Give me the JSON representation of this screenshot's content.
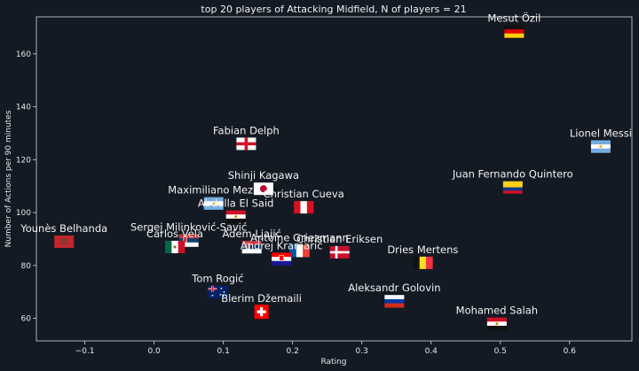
{
  "chart_data": {
    "type": "scatter",
    "title": "top 20 players of Attacking Midfield, N of players = 21",
    "xlabel": "Rating",
    "ylabel": "Number of Actions per 90 minutes",
    "xlim": [
      -0.17,
      0.69
    ],
    "ylim": [
      51.5,
      174
    ],
    "xticks": [
      -0.1,
      0.0,
      0.1,
      0.2,
      0.3,
      0.4,
      0.5,
      0.6
    ],
    "xtick_labels": [
      "−0.1",
      "0.0",
      "0.1",
      "0.2",
      "0.3",
      "0.4",
      "0.5",
      "0.6"
    ],
    "yticks": [
      60,
      80,
      100,
      120,
      140,
      160
    ],
    "ytick_labels": [
      "60",
      "80",
      "100",
      "120",
      "140",
      "160"
    ],
    "grid": false,
    "colors": {
      "background": "#131a24",
      "axis": "#d9d9d9",
      "text": "#f2f2f2"
    },
    "points": [
      {
        "name": "Mesut Özil",
        "x": 0.52,
        "y": 168.5,
        "flag": "germany"
      },
      {
        "name": "Lionel Messi",
        "x": 0.645,
        "y": 125,
        "flag": "argentina"
      },
      {
        "name": "Fabian Delph",
        "x": 0.133,
        "y": 126,
        "flag": "england"
      },
      {
        "name": "Juan Fernando Quintero",
        "x": 0.518,
        "y": 109.5,
        "flag": "colombia"
      },
      {
        "name": "Shinji Kagawa",
        "x": 0.158,
        "y": 109,
        "flag": "japan"
      },
      {
        "name": "Maximiliano Meza",
        "x": 0.086,
        "y": 103.5,
        "flag": "argentina"
      },
      {
        "name": "Christian Cueva",
        "x": 0.216,
        "y": 102,
        "flag": "peru"
      },
      {
        "name": "Abdalla El Said",
        "x": 0.118,
        "y": 98.5,
        "flag": "egypt"
      },
      {
        "name": "Younès Belhanda",
        "x": -0.13,
        "y": 89,
        "flag": "morocco"
      },
      {
        "name": "Sergej Milinković-Savić",
        "x": 0.05,
        "y": 89.5,
        "flag": "serbia"
      },
      {
        "name": "Carlos Vela",
        "x": 0.03,
        "y": 87,
        "flag": "mexico"
      },
      {
        "name": "Adem Ljajić",
        "x": 0.141,
        "y": 87,
        "flag": "serbia"
      },
      {
        "name": "Antoine Griezmann",
        "x": 0.21,
        "y": 85.5,
        "flag": "france"
      },
      {
        "name": "Christian Eriksen",
        "x": 0.268,
        "y": 85,
        "flag": "denmark"
      },
      {
        "name": "Andrej Kramarić",
        "x": 0.184,
        "y": 82.5,
        "flag": "croatia"
      },
      {
        "name": "Dries Mertens",
        "x": 0.388,
        "y": 81,
        "flag": "belgium"
      },
      {
        "name": "Tom Rogić",
        "x": 0.092,
        "y": 70,
        "flag": "australia"
      },
      {
        "name": "Aleksandr Golovin",
        "x": 0.347,
        "y": 66.5,
        "flag": "russia"
      },
      {
        "name": "Blerim Džemaili",
        "x": 0.155,
        "y": 62.5,
        "flag": "switzerland"
      },
      {
        "name": "Mohamed Salah",
        "x": 0.495,
        "y": 58,
        "flag": "egypt"
      }
    ]
  }
}
